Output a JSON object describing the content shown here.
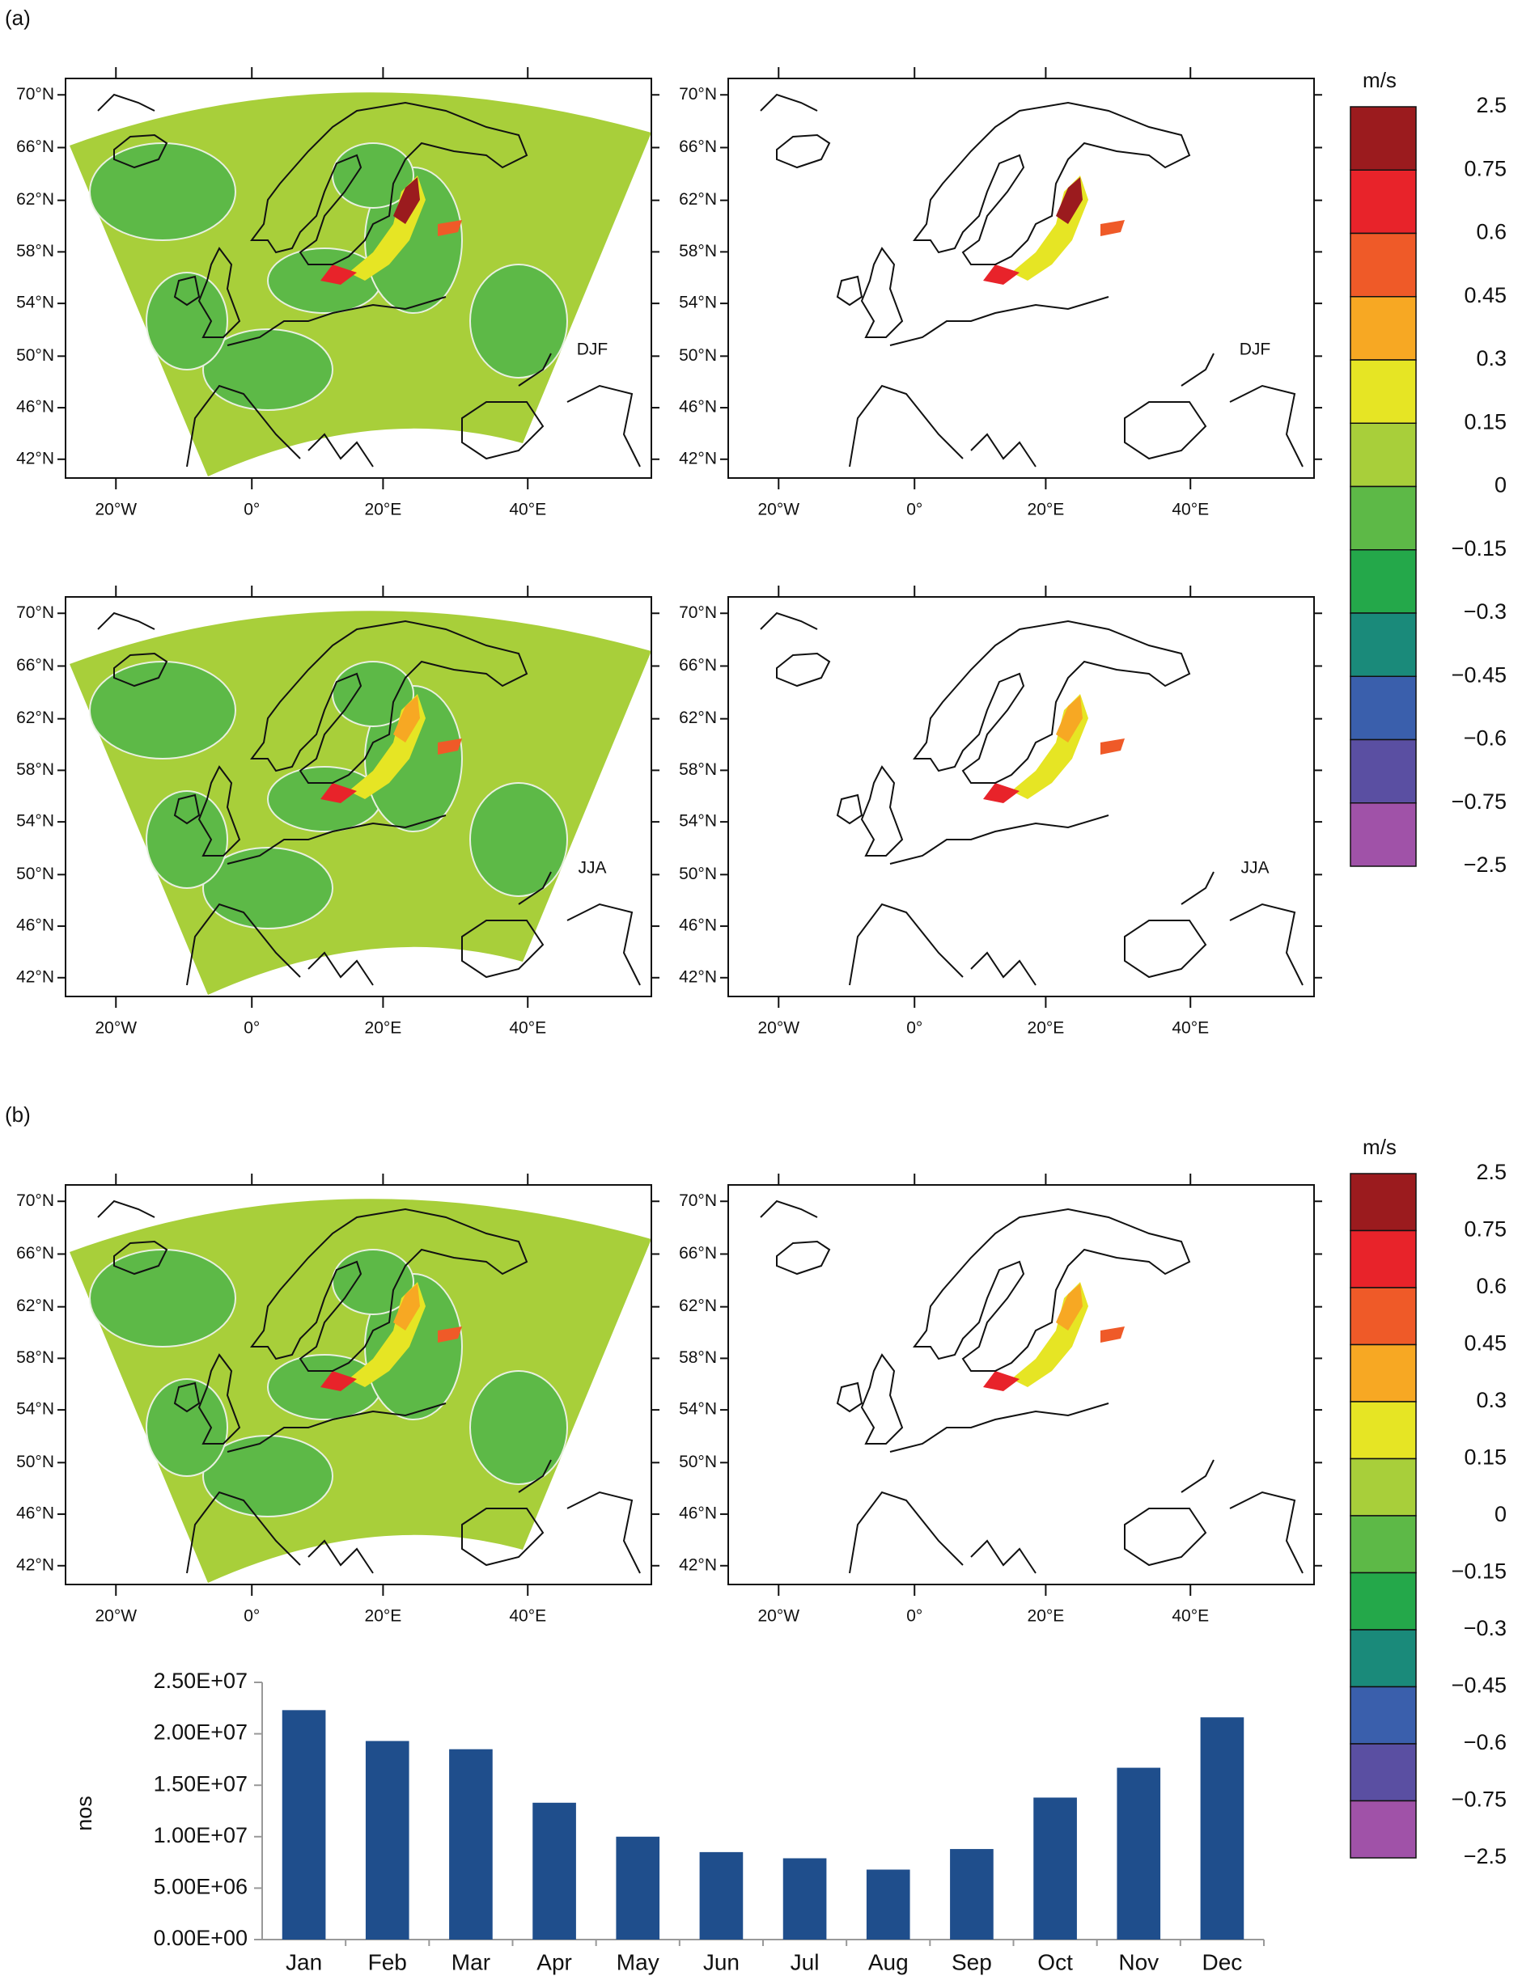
{
  "panel_labels": [
    "(a)",
    "(b)"
  ],
  "maps": {
    "lat_labels": [
      "70°N",
      "66°N",
      "62°N",
      "58°N",
      "54°N",
      "50°N",
      "46°N",
      "42°N"
    ],
    "lon_labels": [
      "20°W",
      "0°",
      "20°E",
      "40°E"
    ],
    "seasons": [
      "DJF",
      "DJF",
      "JJA",
      "JJA"
    ]
  },
  "colorbar": {
    "unit": "m/s",
    "labels": [
      "2.5",
      "0.75",
      "0.6",
      "0.45",
      "0.3",
      "0.15",
      "0",
      "−0.15",
      "−0.3",
      "−0.45",
      "−0.6",
      "−0.75",
      "−2.5"
    ],
    "colors": [
      "#9b1b1e",
      "#e8232a",
      "#ef5a28",
      "#f7a823",
      "#e6e524",
      "#a8cf3a",
      "#5db947",
      "#24a84a",
      "#1a8a7a",
      "#3a5fac",
      "#5a4fa2",
      "#a052a8"
    ]
  },
  "chart_data": {
    "type": "bar",
    "ylabel": "nos",
    "categories": [
      "Jan",
      "Feb",
      "Mar",
      "Apr",
      "May",
      "Jun",
      "Jul",
      "Aug",
      "Sep",
      "Oct",
      "Nov",
      "Dec"
    ],
    "values": [
      22300000,
      19300000,
      18500000,
      13300000,
      10000000,
      8500000,
      7900000,
      6800000,
      8800000,
      13800000,
      16700000,
      21600000
    ],
    "color": "#1f4e8c",
    "ylim": [
      0,
      25000000
    ],
    "yticks": [
      {
        "value": 0,
        "label": "0.00E+00"
      },
      {
        "value": 5000000,
        "label": "5.00E+06"
      },
      {
        "value": 10000000,
        "label": "1.00E+07"
      },
      {
        "value": 15000000,
        "label": "1.50E+07"
      },
      {
        "value": 20000000,
        "label": "2.00E+07"
      },
      {
        "value": 25000000,
        "label": "2.50E+07"
      }
    ],
    "grid": false
  }
}
